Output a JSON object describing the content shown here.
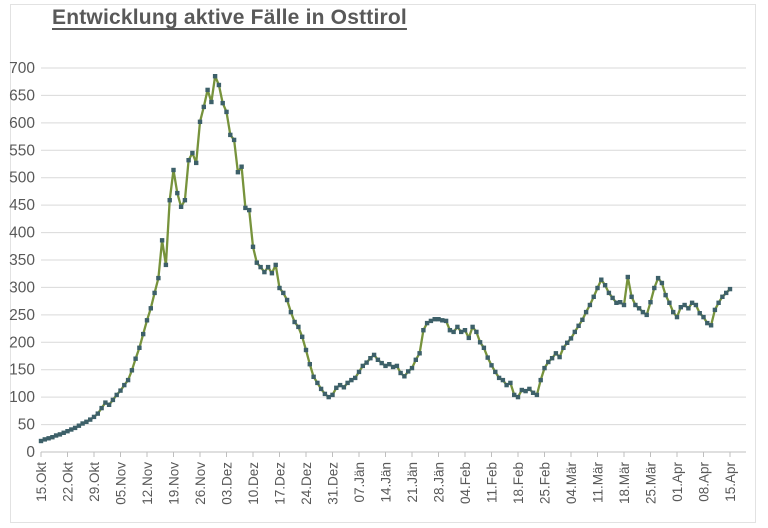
{
  "title": "Entwicklung aktive Fälle in Osttirol",
  "chart_data": {
    "type": "line",
    "title": "Entwicklung aktive Fälle in Osttirol",
    "x_tick_labels": [
      "15.Okt",
      "22.Okt",
      "29.Okt",
      "05.Nov",
      "12.Nov",
      "19.Nov",
      "26.Nov",
      "03.Dez",
      "10.Dez",
      "17.Dez",
      "24.Dez",
      "31.Dez",
      "07.Jän",
      "14.Jän",
      "21.Jän",
      "28.Jän",
      "04.Feb",
      "11.Feb",
      "18.Feb",
      "25.Feb",
      "04.Mär",
      "11.Mär",
      "18.Mär",
      "25.Mär",
      "01.Apr",
      "08.Apr",
      "15.Apr"
    ],
    "x_tick_interval_days": 7,
    "ylim": [
      0,
      700
    ],
    "y_tick_step": 50,
    "y_tick_labels": [
      "0",
      "50",
      "100",
      "150",
      "200",
      "250",
      "300",
      "350",
      "400",
      "450",
      "500",
      "550",
      "600",
      "650",
      "700"
    ],
    "grid": "horizontal",
    "legend_position": "none",
    "marker": "square",
    "series": [
      {
        "values": [
          20,
          23,
          25,
          27,
          30,
          32,
          35,
          38,
          41,
          44,
          48,
          52,
          55,
          59,
          64,
          70,
          80,
          90,
          86,
          95,
          104,
          112,
          122,
          131,
          149,
          170,
          190,
          215,
          240,
          262,
          290,
          317,
          386,
          341,
          459,
          514,
          472,
          447,
          459,
          532,
          545,
          527,
          602,
          629,
          660,
          638,
          685,
          669,
          636,
          620,
          578,
          569,
          510,
          520,
          445,
          441,
          374,
          345,
          337,
          328,
          337,
          326,
          341,
          299,
          290,
          277,
          255,
          237,
          228,
          210,
          186,
          160,
          137,
          126,
          115,
          106,
          100,
          104,
          117,
          122,
          118,
          126,
          131,
          135,
          146,
          157,
          163,
          171,
          177,
          168,
          162,
          157,
          160,
          155,
          157,
          144,
          138,
          147,
          153,
          168,
          180,
          222,
          235,
          239,
          242,
          242,
          240,
          239,
          222,
          219,
          228,
          219,
          222,
          208,
          228,
          219,
          200,
          190,
          172,
          158,
          146,
          135,
          131,
          122,
          126,
          104,
          100,
          113,
          111,
          115,
          108,
          104,
          131,
          153,
          164,
          171,
          180,
          173,
          190,
          199,
          207,
          219,
          230,
          241,
          255,
          268,
          283,
          299,
          314,
          304,
          290,
          281,
          272,
          273,
          268,
          319,
          283,
          268,
          262,
          255,
          250,
          273,
          299,
          317,
          308,
          286,
          272,
          255,
          246,
          264,
          268,
          262,
          272,
          268,
          253,
          246,
          235,
          231,
          259,
          272,
          283,
          290,
          297
        ]
      }
    ],
    "colors": {
      "line": "#77933C",
      "marker": "#3D6069",
      "grid": "#D9D9D9",
      "axis_line": "#BFBFBF",
      "axis_text": "#595959",
      "title_text": "#595959",
      "background": "#FFFFFF"
    }
  }
}
